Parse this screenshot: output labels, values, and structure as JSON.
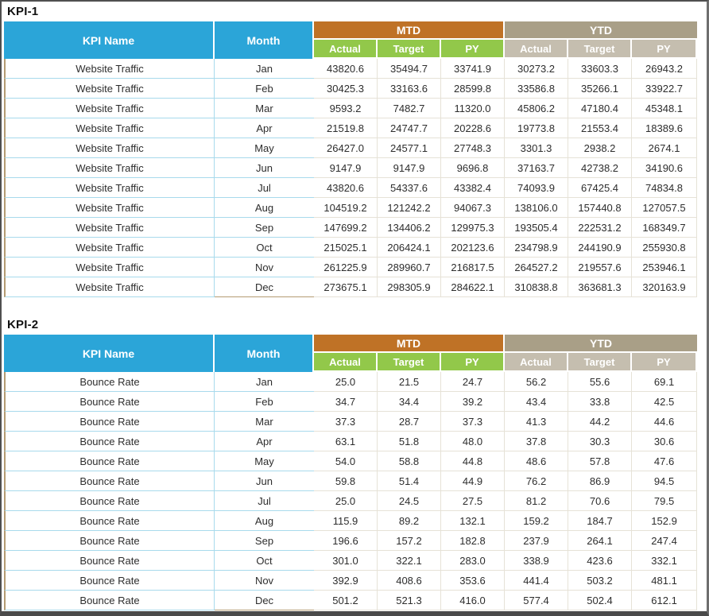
{
  "colors": {
    "header_blue": "#2BA5D8",
    "mtd_orange": "#BF7226",
    "mtd_sub_green": "#92C84A",
    "ytd_taupe": "#A99F87",
    "ytd_sub_taupe": "#C5BEAF",
    "left_border_cyan": "#A8DAEC",
    "data_border_beige": "#E6E2D7",
    "tan_accent": "#B49B72",
    "window_frame": "#4F4F4F"
  },
  "tables": [
    {
      "title": "KPI-1",
      "kpi": "Website Traffic",
      "headers": {
        "kpi_name": "KPI Name",
        "month": "Month",
        "groups": [
          "MTD",
          "YTD"
        ],
        "sub": [
          "Actual",
          "Target",
          "PY",
          "Actual",
          "Target",
          "PY"
        ]
      },
      "rows": [
        {
          "month": "Jan",
          "values": [
            "43820.6",
            "35494.7",
            "33741.9",
            "30273.2",
            "33603.3",
            "26943.2"
          ]
        },
        {
          "month": "Feb",
          "values": [
            "30425.3",
            "33163.6",
            "28599.8",
            "33586.8",
            "35266.1",
            "33922.7"
          ]
        },
        {
          "month": "Mar",
          "values": [
            "9593.2",
            "7482.7",
            "11320.0",
            "45806.2",
            "47180.4",
            "45348.1"
          ]
        },
        {
          "month": "Apr",
          "values": [
            "21519.8",
            "24747.7",
            "20228.6",
            "19773.8",
            "21553.4",
            "18389.6"
          ]
        },
        {
          "month": "May",
          "values": [
            "26427.0",
            "24577.1",
            "27748.3",
            "3301.3",
            "2938.2",
            "2674.1"
          ]
        },
        {
          "month": "Jun",
          "values": [
            "9147.9",
            "9147.9",
            "9696.8",
            "37163.7",
            "42738.2",
            "34190.6"
          ]
        },
        {
          "month": "Jul",
          "values": [
            "43820.6",
            "54337.6",
            "43382.4",
            "74093.9",
            "67425.4",
            "74834.8"
          ]
        },
        {
          "month": "Aug",
          "values": [
            "104519.2",
            "121242.2",
            "94067.3",
            "138106.0",
            "157440.8",
            "127057.5"
          ]
        },
        {
          "month": "Sep",
          "values": [
            "147699.2",
            "134406.2",
            "129975.3",
            "193505.4",
            "222531.2",
            "168349.7"
          ]
        },
        {
          "month": "Oct",
          "values": [
            "215025.1",
            "206424.1",
            "202123.6",
            "234798.9",
            "244190.9",
            "255930.8"
          ]
        },
        {
          "month": "Nov",
          "values": [
            "261225.9",
            "289960.7",
            "216817.5",
            "264527.2",
            "219557.6",
            "253946.1"
          ]
        },
        {
          "month": "Dec",
          "values": [
            "273675.1",
            "298305.9",
            "284622.1",
            "310838.8",
            "363681.3",
            "320163.9"
          ]
        }
      ]
    },
    {
      "title": "KPI-2",
      "kpi": "Bounce Rate",
      "headers": {
        "kpi_name": "KPI Name",
        "month": "Month",
        "groups": [
          "MTD",
          "YTD"
        ],
        "sub": [
          "Actual",
          "Target",
          "PY",
          "Actual",
          "Target",
          "PY"
        ]
      },
      "rows": [
        {
          "month": "Jan",
          "values": [
            "25.0",
            "21.5",
            "24.7",
            "56.2",
            "55.6",
            "69.1"
          ]
        },
        {
          "month": "Feb",
          "values": [
            "34.7",
            "34.4",
            "39.2",
            "43.4",
            "33.8",
            "42.5"
          ]
        },
        {
          "month": "Mar",
          "values": [
            "37.3",
            "28.7",
            "37.3",
            "41.3",
            "44.2",
            "44.6"
          ]
        },
        {
          "month": "Apr",
          "values": [
            "63.1",
            "51.8",
            "48.0",
            "37.8",
            "30.3",
            "30.6"
          ]
        },
        {
          "month": "May",
          "values": [
            "54.0",
            "58.8",
            "44.8",
            "48.6",
            "57.8",
            "47.6"
          ]
        },
        {
          "month": "Jun",
          "values": [
            "59.8",
            "51.4",
            "44.9",
            "76.2",
            "86.9",
            "94.5"
          ]
        },
        {
          "month": "Jul",
          "values": [
            "25.0",
            "24.5",
            "27.5",
            "81.2",
            "70.6",
            "79.5"
          ]
        },
        {
          "month": "Aug",
          "values": [
            "115.9",
            "89.2",
            "132.1",
            "159.2",
            "184.7",
            "152.9"
          ]
        },
        {
          "month": "Sep",
          "values": [
            "196.6",
            "157.2",
            "182.8",
            "237.9",
            "264.1",
            "247.4"
          ]
        },
        {
          "month": "Oct",
          "values": [
            "301.0",
            "322.1",
            "283.0",
            "338.9",
            "423.6",
            "332.1"
          ]
        },
        {
          "month": "Nov",
          "values": [
            "392.9",
            "408.6",
            "353.6",
            "441.4",
            "503.2",
            "481.1"
          ]
        },
        {
          "month": "Dec",
          "values": [
            "501.2",
            "521.3",
            "416.0",
            "577.4",
            "502.4",
            "612.1"
          ]
        }
      ]
    }
  ]
}
